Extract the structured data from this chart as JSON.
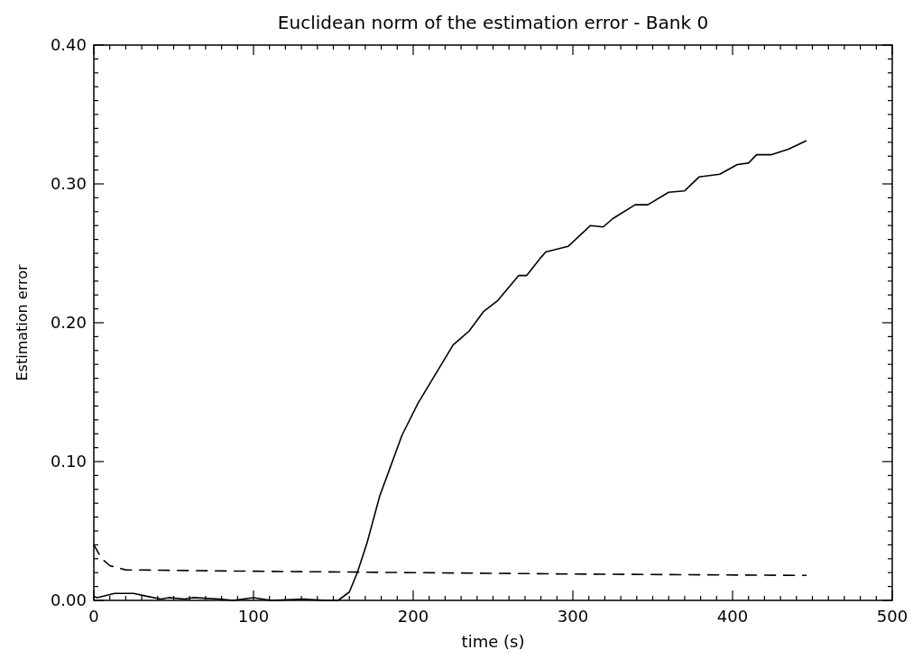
{
  "chart_data": {
    "type": "line",
    "title": "Euclidean norm of the estimation error - Bank 0",
    "xlabel": "time (s)",
    "ylabel": "Estimation error",
    "xlim": [
      0,
      500
    ],
    "ylim": [
      0,
      0.4
    ],
    "xticks": [
      0,
      {
        "value": 10,
        "label": null
      },
      {
        "value": 20,
        "label": null
      },
      {
        "value": 30,
        "label": null
      },
      {
        "value": 40,
        "label": null
      },
      {
        "value": 50,
        "label": null
      },
      {
        "value": 60,
        "label": null
      },
      {
        "value": 70,
        "label": null
      },
      {
        "value": 80,
        "label": null
      },
      {
        "value": 90,
        "label": null
      },
      100,
      {
        "value": 110,
        "label": null
      },
      {
        "value": 120,
        "label": null
      },
      {
        "value": 130,
        "label": null
      },
      {
        "value": 140,
        "label": null
      },
      {
        "value": 150,
        "label": null
      },
      {
        "value": 160,
        "label": null
      },
      {
        "value": 170,
        "label": null
      },
      {
        "value": 180,
        "label": null
      },
      {
        "value": 190,
        "label": null
      },
      200,
      {
        "value": 210,
        "label": null
      },
      {
        "value": 220,
        "label": null
      },
      {
        "value": 230,
        "label": null
      },
      {
        "value": 240,
        "label": null
      },
      {
        "value": 250,
        "label": null
      },
      {
        "value": 260,
        "label": null
      },
      {
        "value": 270,
        "label": null
      },
      {
        "value": 280,
        "label": null
      },
      {
        "value": 290,
        "label": null
      },
      300,
      {
        "value": 310,
        "label": null
      },
      {
        "value": 320,
        "label": null
      },
      {
        "value": 330,
        "label": null
      },
      {
        "value": 340,
        "label": null
      },
      {
        "value": 350,
        "label": null
      },
      {
        "value": 360,
        "label": null
      },
      {
        "value": 370,
        "label": null
      },
      {
        "value": 380,
        "label": null
      },
      {
        "value": 390,
        "label": null
      },
      400,
      {
        "value": 410,
        "label": null
      },
      {
        "value": 420,
        "label": null
      },
      {
        "value": 430,
        "label": null
      },
      {
        "value": 440,
        "label": null
      },
      {
        "value": 450,
        "label": null
      },
      {
        "value": 460,
        "label": null
      },
      {
        "value": 470,
        "label": null
      },
      {
        "value": 480,
        "label": null
      },
      {
        "value": 490,
        "label": null
      },
      500
    ],
    "yticks": [
      {
        "value": 0,
        "label": "0.00"
      },
      {
        "value": 0.01,
        "label": null
      },
      {
        "value": 0.02,
        "label": null
      },
      {
        "value": 0.03,
        "label": null
      },
      {
        "value": 0.04,
        "label": null
      },
      {
        "value": 0.05,
        "label": null
      },
      {
        "value": 0.06,
        "label": null
      },
      {
        "value": 0.07,
        "label": null
      },
      {
        "value": 0.08,
        "label": null
      },
      {
        "value": 0.09,
        "label": null
      },
      {
        "value": 0.1,
        "label": "0.10"
      },
      {
        "value": 0.11,
        "label": null
      },
      {
        "value": 0.12,
        "label": null
      },
      {
        "value": 0.13,
        "label": null
      },
      {
        "value": 0.14,
        "label": null
      },
      {
        "value": 0.15,
        "label": null
      },
      {
        "value": 0.16,
        "label": null
      },
      {
        "value": 0.17,
        "label": null
      },
      {
        "value": 0.18,
        "label": null
      },
      {
        "value": 0.19,
        "label": null
      },
      {
        "value": 0.2,
        "label": "0.20"
      },
      {
        "value": 0.21,
        "label": null
      },
      {
        "value": 0.22,
        "label": null
      },
      {
        "value": 0.23,
        "label": null
      },
      {
        "value": 0.24,
        "label": null
      },
      {
        "value": 0.25,
        "label": null
      },
      {
        "value": 0.26,
        "label": null
      },
      {
        "value": 0.27,
        "label": null
      },
      {
        "value": 0.28,
        "label": null
      },
      {
        "value": 0.29,
        "label": null
      },
      {
        "value": 0.3,
        "label": "0.30"
      },
      {
        "value": 0.31,
        "label": null
      },
      {
        "value": 0.32,
        "label": null
      },
      {
        "value": 0.33,
        "label": null
      },
      {
        "value": 0.34,
        "label": null
      },
      {
        "value": 0.35,
        "label": null
      },
      {
        "value": 0.36,
        "label": null
      },
      {
        "value": 0.37,
        "label": null
      },
      {
        "value": 0.38,
        "label": null
      },
      {
        "value": 0.39,
        "label": null
      },
      {
        "value": 0.4,
        "label": "0.40"
      }
    ],
    "grid": false,
    "series": [
      {
        "color": "#000000",
        "line_style": "solid",
        "x": [
          0,
          2,
          13,
          25,
          33,
          42,
          47,
          57,
          62,
          79,
          87,
          100,
          111,
          131,
          145,
          153,
          160,
          165,
          171,
          179,
          193,
          203,
          225,
          235,
          244,
          253,
          266,
          271,
          280,
          283,
          297,
          311,
          319,
          325,
          339,
          347,
          360,
          370,
          379,
          392,
          403,
          410,
          415,
          424,
          435,
          446
        ],
        "values": [
          0.003,
          0.002,
          0.005,
          0.005,
          0.003,
          0.001,
          0.002,
          0.001,
          0.002,
          0.001,
          0,
          0.002,
          0,
          0.001,
          0,
          0,
          0.006,
          0.02,
          0.041,
          0.075,
          0.119,
          0.142,
          0.184,
          0.194,
          0.208,
          0.216,
          0.234,
          0.234,
          0.247,
          0.251,
          0.255,
          0.27,
          0.269,
          0.275,
          0.285,
          0.285,
          0.294,
          0.295,
          0.305,
          0.307,
          0.314,
          0.315,
          0.321,
          0.321,
          0.325,
          0.331
        ]
      },
      {
        "color": "#000000",
        "line_style": "dashed",
        "x": [
          0,
          5,
          10,
          20,
          100,
          200,
          300,
          446
        ],
        "values": [
          0.04,
          0.03,
          0.025,
          0.022,
          0.021,
          0.02,
          0.019,
          0.018
        ]
      }
    ]
  }
}
